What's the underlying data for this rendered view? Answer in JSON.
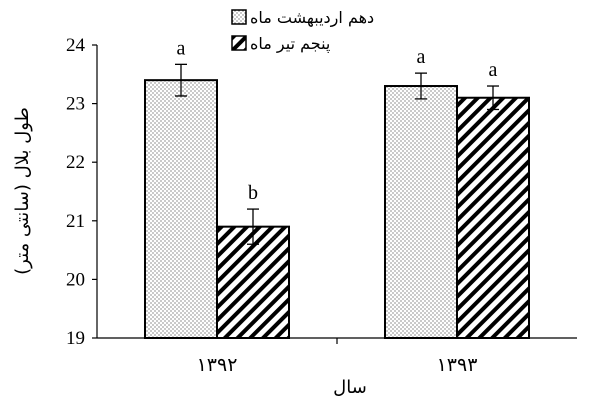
{
  "chart_data": {
    "type": "bar",
    "categories": [
      "۱۳۹۲",
      "۱۳۹۳"
    ],
    "series": [
      {
        "name": "دهم اردیبهشت ماه",
        "values": [
          23.4,
          23.3
        ],
        "errors": [
          0.27,
          0.22
        ],
        "letters": [
          "a",
          "a"
        ],
        "pattern": "dots"
      },
      {
        "name": "پنجم تیر ماه",
        "values": [
          20.9,
          23.1
        ],
        "errors": [
          0.3,
          0.2
        ],
        "letters": [
          "b",
          "a"
        ],
        "pattern": "hatch"
      }
    ],
    "xlabel": "سال",
    "ylabel": "طول بلال (سانتی متر)",
    "ylim": [
      19,
      24
    ],
    "yticks": [
      19,
      20,
      21,
      22,
      23,
      24
    ],
    "legend_position": "top-center",
    "grid": false
  }
}
